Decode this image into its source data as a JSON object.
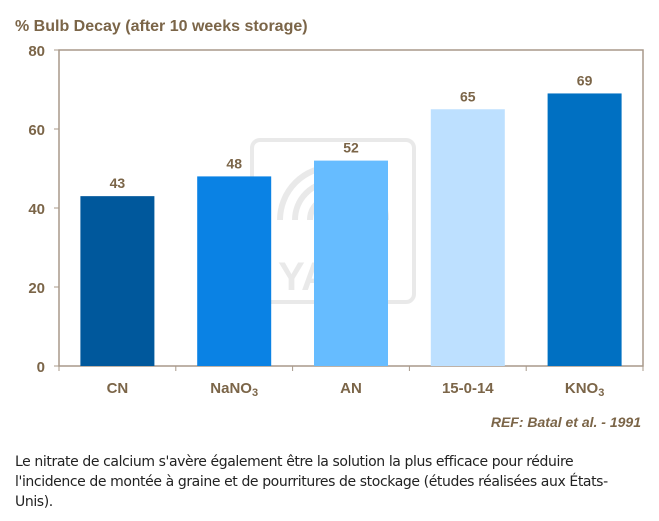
{
  "chart_data": {
    "type": "bar",
    "title": "% Bulb Decay (after 10 weeks storage)",
    "categories": [
      {
        "label": "CN",
        "sub": ""
      },
      {
        "label": "NaNO",
        "sub": "3"
      },
      {
        "label": "AN",
        "sub": ""
      },
      {
        "label": "15-0-14",
        "sub": ""
      },
      {
        "label": "KNO",
        "sub": "3"
      }
    ],
    "values": [
      43,
      48,
      52,
      65,
      69
    ],
    "data_labels": [
      "43",
      "48",
      "52",
      "65",
      "69"
    ],
    "colors": [
      "#00589c",
      "#0a82e4",
      "#66bcff",
      "#bde0ff",
      "#0070c2"
    ],
    "ylim": [
      0,
      80
    ],
    "yticks": [
      0,
      20,
      40,
      60,
      80
    ],
    "grid": false,
    "legend": "none",
    "reference": "REF: Batal et al. - 1991",
    "watermark": "YARA"
  },
  "caption": "Le nitrate de calcium s'avère également être la solution la plus efficace pour réduire l'incidence de montée à graine et de pourritures de stockage (études réalisées aux États-Unis)."
}
